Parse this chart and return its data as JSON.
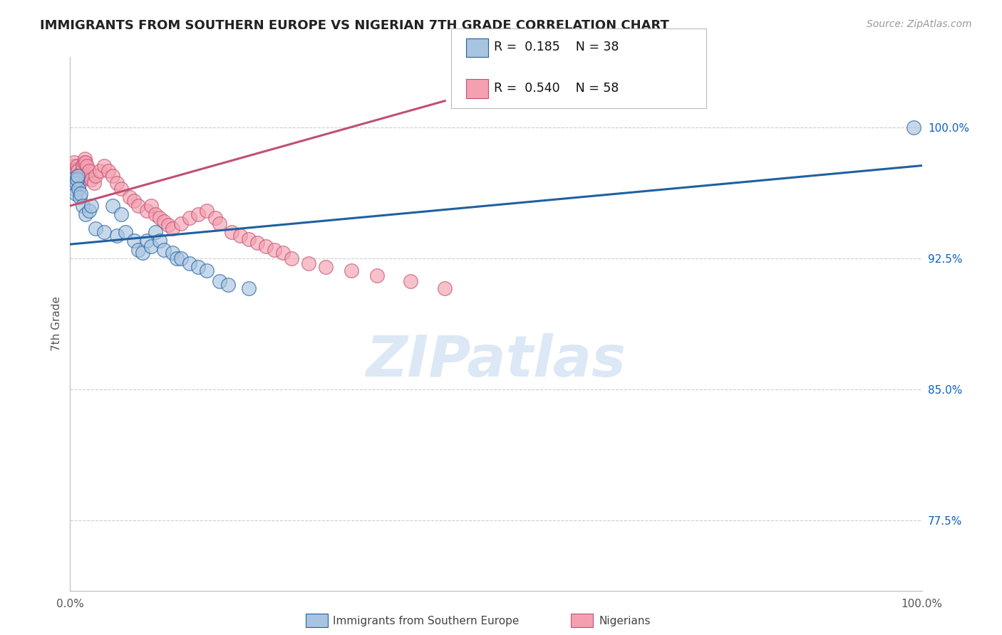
{
  "title": "IMMIGRANTS FROM SOUTHERN EUROPE VS NIGERIAN 7TH GRADE CORRELATION CHART",
  "source_text": "Source: ZipAtlas.com",
  "ylabel": "7th Grade",
  "y_ticks": [
    0.775,
    0.85,
    0.925,
    1.0
  ],
  "y_tick_labels": [
    "77.5%",
    "85.0%",
    "92.5%",
    "100.0%"
  ],
  "xlim": [
    0.0,
    1.0
  ],
  "ylim": [
    0.735,
    1.04
  ],
  "blue_R": 0.185,
  "blue_N": 38,
  "pink_R": 0.54,
  "pink_N": 58,
  "blue_color": "#a8c4e0",
  "pink_color": "#f4a0b0",
  "blue_edge_color": "#2060a0",
  "pink_edge_color": "#c05070",
  "blue_line_color": "#2060a0",
  "pink_line_color": "#c05070",
  "right_tick_color": "#1060c0",
  "watermark_color": "#dce8f5",
  "blue_scatter_x": [
    0.003,
    0.004,
    0.005,
    0.006,
    0.007,
    0.008,
    0.009,
    0.01,
    0.011,
    0.012,
    0.015,
    0.018,
    0.022,
    0.025,
    0.03,
    0.04,
    0.05,
    0.055,
    0.06,
    0.065,
    0.075,
    0.08,
    0.085,
    0.09,
    0.095,
    0.1,
    0.105,
    0.11,
    0.12,
    0.125,
    0.13,
    0.14,
    0.15,
    0.16,
    0.175,
    0.185,
    0.21,
    0.99
  ],
  "blue_scatter_y": [
    0.97,
    0.968,
    0.965,
    0.962,
    0.968,
    0.97,
    0.972,
    0.965,
    0.96,
    0.962,
    0.955,
    0.95,
    0.952,
    0.955,
    0.942,
    0.94,
    0.955,
    0.938,
    0.95,
    0.94,
    0.935,
    0.93,
    0.928,
    0.935,
    0.932,
    0.94,
    0.935,
    0.93,
    0.928,
    0.925,
    0.925,
    0.922,
    0.92,
    0.918,
    0.912,
    0.91,
    0.908,
    1.0
  ],
  "pink_scatter_x": [
    0.002,
    0.003,
    0.004,
    0.005,
    0.006,
    0.007,
    0.008,
    0.009,
    0.01,
    0.011,
    0.012,
    0.013,
    0.014,
    0.015,
    0.016,
    0.017,
    0.018,
    0.02,
    0.022,
    0.025,
    0.028,
    0.03,
    0.035,
    0.04,
    0.045,
    0.05,
    0.055,
    0.06,
    0.07,
    0.075,
    0.08,
    0.09,
    0.095,
    0.1,
    0.105,
    0.11,
    0.115,
    0.12,
    0.13,
    0.14,
    0.15,
    0.16,
    0.17,
    0.175,
    0.19,
    0.2,
    0.21,
    0.22,
    0.23,
    0.24,
    0.25,
    0.26,
    0.28,
    0.3,
    0.33,
    0.36,
    0.4,
    0.44
  ],
  "pink_scatter_y": [
    0.972,
    0.975,
    0.978,
    0.98,
    0.976,
    0.975,
    0.978,
    0.975,
    0.972,
    0.968,
    0.97,
    0.972,
    0.975,
    0.978,
    0.98,
    0.982,
    0.98,
    0.978,
    0.975,
    0.97,
    0.968,
    0.972,
    0.975,
    0.978,
    0.975,
    0.972,
    0.968,
    0.965,
    0.96,
    0.958,
    0.955,
    0.952,
    0.955,
    0.95,
    0.948,
    0.946,
    0.944,
    0.942,
    0.945,
    0.948,
    0.95,
    0.952,
    0.948,
    0.945,
    0.94,
    0.938,
    0.936,
    0.934,
    0.932,
    0.93,
    0.928,
    0.925,
    0.922,
    0.92,
    0.918,
    0.915,
    0.912,
    0.908
  ],
  "blue_trend_x": [
    0.0,
    1.0
  ],
  "blue_trend_y": [
    0.933,
    0.978
  ],
  "pink_trend_x": [
    0.0,
    0.44
  ],
  "pink_trend_y": [
    0.955,
    1.015
  ]
}
